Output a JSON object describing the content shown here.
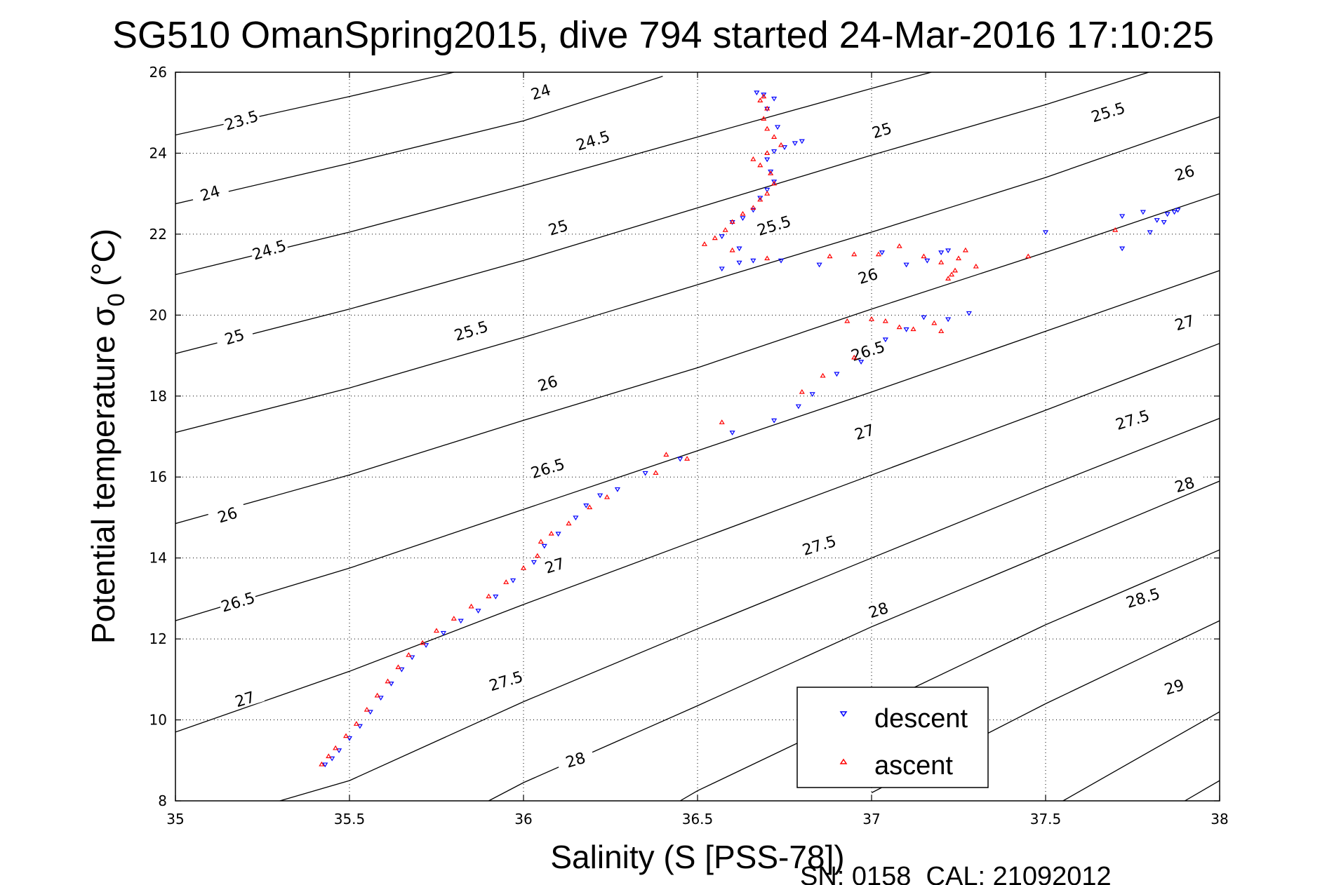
{
  "chart_data": {
    "type": "scatter",
    "title": "SG510 OmanSpring2015, dive 794 started 24-Mar-2016 17:10:25",
    "xlabel": "Salinity (S [PSS-78])",
    "ylabel_main": "Potential temperature σ",
    "ylabel_sub": "0",
    "ylabel_unit": "(°C)",
    "footer": "SN: 0158  CAL: 21092012",
    "xlim": [
      35,
      38
    ],
    "ylim": [
      8,
      26
    ],
    "xticks": [
      "35",
      "35.5",
      "36",
      "36.5",
      "37",
      "37.5",
      "38"
    ],
    "yticks": [
      "8",
      "10",
      "12",
      "14",
      "16",
      "18",
      "20",
      "22",
      "24",
      "26"
    ],
    "grid": "dotted",
    "legend_position": "bottom-right",
    "density_contours": [
      {
        "label": "23.5",
        "points": [
          [
            35.0,
            24.45
          ],
          [
            35.5,
            25.4
          ],
          [
            35.95,
            26.3
          ]
        ],
        "label_at": [
          35.19,
          24.8
        ]
      },
      {
        "label": "24",
        "points": [
          [
            35.0,
            22.75
          ],
          [
            35.5,
            23.75
          ],
          [
            36.0,
            24.8
          ],
          [
            36.4,
            25.9
          ]
        ],
        "label_at": [
          35.1,
          23.0
        ]
      },
      {
        "label": "24",
        "points": [],
        "label_at": [
          36.05,
          25.5
        ]
      },
      {
        "label": "24.5",
        "points": [
          [
            35.0,
            21.0
          ],
          [
            35.5,
            22.05
          ],
          [
            36.0,
            23.2
          ],
          [
            36.5,
            24.4
          ],
          [
            37.0,
            25.6
          ],
          [
            37.3,
            26.3
          ]
        ],
        "label_at": [
          35.27,
          21.6
        ]
      },
      {
        "label": "24.5",
        "points": [],
        "label_at": [
          36.2,
          24.3
        ]
      },
      {
        "label": "25",
        "points": [
          [
            35.0,
            19.05
          ],
          [
            35.5,
            20.15
          ],
          [
            36.0,
            21.35
          ],
          [
            36.5,
            22.65
          ],
          [
            37.0,
            23.95
          ],
          [
            37.5,
            25.2
          ],
          [
            38.0,
            26.55
          ]
        ],
        "label_at": [
          35.17,
          19.45
        ]
      },
      {
        "label": "25",
        "points": [],
        "label_at": [
          36.1,
          22.15
        ]
      },
      {
        "label": "25",
        "points": [],
        "label_at": [
          37.03,
          24.55
        ]
      },
      {
        "label": "25.5",
        "points": [
          [
            35.0,
            17.1
          ],
          [
            35.5,
            18.2
          ],
          [
            36.0,
            19.45
          ],
          [
            36.5,
            20.75
          ],
          [
            37.0,
            22.05
          ],
          [
            37.5,
            23.4
          ],
          [
            38.0,
            24.9
          ]
        ],
        "label_at": [
          35.85,
          19.6
        ]
      },
      {
        "label": "25.5",
        "points": [],
        "label_at": [
          36.72,
          22.2
        ]
      },
      {
        "label": "25.5",
        "points": [],
        "label_at": [
          37.68,
          25.0
        ]
      },
      {
        "label": "26",
        "points": [
          [
            35.0,
            14.85
          ],
          [
            35.5,
            16.05
          ],
          [
            36.0,
            17.4
          ],
          [
            36.5,
            18.7
          ],
          [
            37.0,
            20.15
          ],
          [
            37.5,
            21.55
          ],
          [
            38.0,
            23.0
          ]
        ],
        "label_at": [
          35.15,
          15.05
        ]
      },
      {
        "label": "26",
        "points": [],
        "label_at": [
          36.07,
          18.3
        ]
      },
      {
        "label": "26",
        "points": [],
        "label_at": [
          36.99,
          20.95
        ]
      },
      {
        "label": "26",
        "points": [],
        "label_at": [
          37.9,
          23.5
        ]
      },
      {
        "label": "26.5",
        "points": [
          [
            35.0,
            12.45
          ],
          [
            35.5,
            13.75
          ],
          [
            36.0,
            15.2
          ],
          [
            36.5,
            16.65
          ],
          [
            37.0,
            18.1
          ],
          [
            37.5,
            19.6
          ],
          [
            38.0,
            21.1
          ]
        ],
        "label_at": [
          35.18,
          12.9
        ]
      },
      {
        "label": "26.5",
        "points": [],
        "label_at": [
          36.07,
          16.2
        ]
      },
      {
        "label": "26.5",
        "points": [],
        "label_at": [
          36.99,
          19.1
        ]
      },
      {
        "label": "27",
        "points": [
          [
            35.0,
            9.7
          ],
          [
            35.5,
            11.2
          ],
          [
            36.0,
            12.85
          ],
          [
            36.5,
            14.45
          ],
          [
            37.0,
            16.05
          ],
          [
            37.5,
            17.65
          ],
          [
            38.0,
            19.3
          ]
        ],
        "label_at": [
          35.2,
          10.5
        ]
      },
      {
        "label": "27",
        "points": [],
        "label_at": [
          36.09,
          13.8
        ]
      },
      {
        "label": "27",
        "points": [],
        "label_at": [
          36.98,
          17.1
        ]
      },
      {
        "label": "27",
        "points": [],
        "label_at": [
          37.9,
          19.8
        ]
      },
      {
        "label": "27.5",
        "points": [
          [
            35.3,
            8.0
          ],
          [
            35.5,
            8.5
          ],
          [
            36.0,
            10.45
          ],
          [
            36.5,
            12.25
          ],
          [
            37.0,
            14.0
          ],
          [
            37.5,
            15.75
          ],
          [
            38.0,
            17.45
          ]
        ],
        "label_at": [
          35.95,
          10.95
        ]
      },
      {
        "label": "27.5",
        "points": [],
        "label_at": [
          36.85,
          14.3
        ]
      },
      {
        "label": "27.5",
        "points": [],
        "label_at": [
          37.75,
          17.4
        ]
      },
      {
        "label": "28",
        "points": [
          [
            35.9,
            8.0
          ],
          [
            36.0,
            8.45
          ],
          [
            36.5,
            10.35
          ],
          [
            37.0,
            12.3
          ],
          [
            37.5,
            14.1
          ],
          [
            38.0,
            15.9
          ]
        ],
        "label_at": [
          36.15,
          9.0
        ]
      },
      {
        "label": "28",
        "points": [],
        "label_at": [
          37.02,
          12.7
        ]
      },
      {
        "label": "28",
        "points": [],
        "label_at": [
          37.9,
          15.8
        ]
      },
      {
        "label": "28.5",
        "points": [
          [
            36.45,
            8.0
          ],
          [
            36.5,
            8.25
          ],
          [
            37.0,
            10.3
          ],
          [
            37.5,
            12.35
          ],
          [
            38.0,
            14.2
          ]
        ],
        "label_at": [
          37.78,
          13.0
        ]
      },
      {
        "label": "29",
        "points": [
          [
            37.0,
            8.2
          ],
          [
            37.5,
            10.4
          ],
          [
            38.0,
            12.45
          ]
        ],
        "label_at": [
          37.87,
          10.8
        ]
      },
      {
        "label": "",
        "points": [
          [
            37.55,
            8.0
          ],
          [
            38.0,
            10.2
          ]
        ],
        "label_at": null
      },
      {
        "label": "",
        "points": [
          [
            37.9,
            8.0
          ],
          [
            38.0,
            8.5
          ]
        ],
        "label_at": null
      }
    ],
    "series": [
      {
        "name": "descent",
        "color": "#0000ff",
        "marker": "triangle-down",
        "points": [
          [
            35.43,
            8.9
          ],
          [
            35.45,
            9.05
          ],
          [
            35.47,
            9.25
          ],
          [
            35.5,
            9.55
          ],
          [
            35.53,
            9.85
          ],
          [
            35.56,
            10.2
          ],
          [
            35.59,
            10.55
          ],
          [
            35.62,
            10.9
          ],
          [
            35.65,
            11.25
          ],
          [
            35.68,
            11.55
          ],
          [
            35.72,
            11.85
          ],
          [
            35.77,
            12.15
          ],
          [
            35.82,
            12.45
          ],
          [
            35.87,
            12.7
          ],
          [
            35.92,
            13.05
          ],
          [
            35.97,
            13.45
          ],
          [
            36.03,
            13.9
          ],
          [
            36.06,
            14.3
          ],
          [
            36.1,
            14.6
          ],
          [
            36.15,
            15.0
          ],
          [
            36.18,
            15.3
          ],
          [
            36.22,
            15.55
          ],
          [
            36.27,
            15.7
          ],
          [
            36.35,
            16.1
          ],
          [
            36.45,
            16.45
          ],
          [
            36.6,
            17.1
          ],
          [
            36.72,
            17.4
          ],
          [
            36.79,
            17.75
          ],
          [
            36.83,
            18.05
          ],
          [
            36.9,
            18.55
          ],
          [
            36.97,
            18.85
          ],
          [
            37.04,
            19.4
          ],
          [
            37.1,
            19.65
          ],
          [
            37.15,
            19.95
          ],
          [
            37.22,
            19.9
          ],
          [
            37.28,
            20.05
          ],
          [
            36.57,
            21.15
          ],
          [
            36.62,
            21.3
          ],
          [
            36.66,
            21.35
          ],
          [
            36.74,
            21.35
          ],
          [
            36.85,
            21.25
          ],
          [
            36.62,
            21.65
          ],
          [
            36.57,
            21.95
          ],
          [
            36.6,
            22.3
          ],
          [
            36.63,
            22.4
          ],
          [
            36.66,
            22.6
          ],
          [
            36.68,
            22.9
          ],
          [
            36.7,
            23.1
          ],
          [
            36.72,
            23.3
          ],
          [
            36.71,
            23.55
          ],
          [
            36.7,
            23.85
          ],
          [
            36.72,
            24.05
          ],
          [
            36.75,
            24.15
          ],
          [
            36.78,
            24.25
          ],
          [
            36.8,
            24.3
          ],
          [
            36.73,
            24.65
          ],
          [
            36.7,
            25.1
          ],
          [
            36.72,
            25.35
          ],
          [
            36.69,
            25.45
          ],
          [
            36.67,
            25.5
          ],
          [
            37.03,
            21.55
          ],
          [
            37.16,
            21.35
          ],
          [
            37.2,
            21.55
          ],
          [
            37.1,
            21.25
          ],
          [
            37.22,
            21.6
          ],
          [
            37.5,
            22.05
          ],
          [
            37.72,
            21.65
          ],
          [
            37.72,
            22.45
          ],
          [
            37.78,
            22.55
          ],
          [
            37.8,
            22.05
          ],
          [
            37.82,
            22.35
          ],
          [
            37.85,
            22.5
          ],
          [
            37.87,
            22.55
          ],
          [
            37.88,
            22.6
          ],
          [
            37.84,
            22.3
          ]
        ]
      },
      {
        "name": "ascent",
        "color": "#ff0000",
        "marker": "triangle-up",
        "points": [
          [
            35.42,
            8.9
          ],
          [
            35.44,
            9.1
          ],
          [
            35.46,
            9.3
          ],
          [
            35.49,
            9.6
          ],
          [
            35.52,
            9.9
          ],
          [
            35.55,
            10.25
          ],
          [
            35.58,
            10.6
          ],
          [
            35.61,
            10.95
          ],
          [
            35.64,
            11.3
          ],
          [
            35.67,
            11.6
          ],
          [
            35.71,
            11.9
          ],
          [
            35.75,
            12.2
          ],
          [
            35.8,
            12.5
          ],
          [
            35.85,
            12.8
          ],
          [
            35.9,
            13.05
          ],
          [
            35.95,
            13.4
          ],
          [
            36.0,
            13.75
          ],
          [
            36.04,
            14.05
          ],
          [
            36.05,
            14.4
          ],
          [
            36.08,
            14.6
          ],
          [
            36.13,
            14.85
          ],
          [
            36.19,
            15.25
          ],
          [
            36.24,
            15.5
          ],
          [
            36.38,
            16.1
          ],
          [
            36.41,
            16.55
          ],
          [
            36.47,
            16.45
          ],
          [
            36.57,
            17.35
          ],
          [
            36.8,
            18.1
          ],
          [
            36.86,
            18.5
          ],
          [
            36.95,
            18.95
          ],
          [
            36.93,
            19.85
          ],
          [
            37.0,
            19.9
          ],
          [
            37.04,
            19.85
          ],
          [
            37.08,
            19.7
          ],
          [
            37.12,
            19.65
          ],
          [
            37.18,
            19.8
          ],
          [
            37.2,
            19.6
          ],
          [
            36.52,
            21.75
          ],
          [
            36.55,
            21.9
          ],
          [
            36.58,
            22.1
          ],
          [
            36.6,
            22.3
          ],
          [
            36.63,
            22.5
          ],
          [
            36.66,
            22.65
          ],
          [
            36.68,
            22.85
          ],
          [
            36.7,
            23.0
          ],
          [
            36.72,
            23.25
          ],
          [
            36.71,
            23.5
          ],
          [
            36.68,
            23.7
          ],
          [
            36.66,
            23.85
          ],
          [
            36.7,
            24.0
          ],
          [
            36.74,
            24.2
          ],
          [
            36.72,
            24.4
          ],
          [
            36.7,
            24.6
          ],
          [
            36.69,
            24.85
          ],
          [
            36.7,
            25.1
          ],
          [
            36.68,
            25.3
          ],
          [
            36.69,
            25.4
          ],
          [
            36.6,
            21.6
          ],
          [
            36.7,
            21.4
          ],
          [
            36.88,
            21.45
          ],
          [
            36.95,
            21.5
          ],
          [
            37.02,
            21.5
          ],
          [
            37.15,
            21.45
          ],
          [
            37.2,
            21.3
          ],
          [
            37.25,
            21.4
          ],
          [
            37.08,
            21.7
          ],
          [
            37.24,
            21.1
          ],
          [
            37.27,
            21.6
          ],
          [
            37.45,
            21.45
          ],
          [
            37.7,
            22.1
          ],
          [
            37.3,
            21.2
          ],
          [
            37.22,
            20.9
          ],
          [
            37.23,
            21.0
          ]
        ]
      }
    ]
  },
  "legend": {
    "descent_label": "descent",
    "ascent_label": "ascent"
  }
}
